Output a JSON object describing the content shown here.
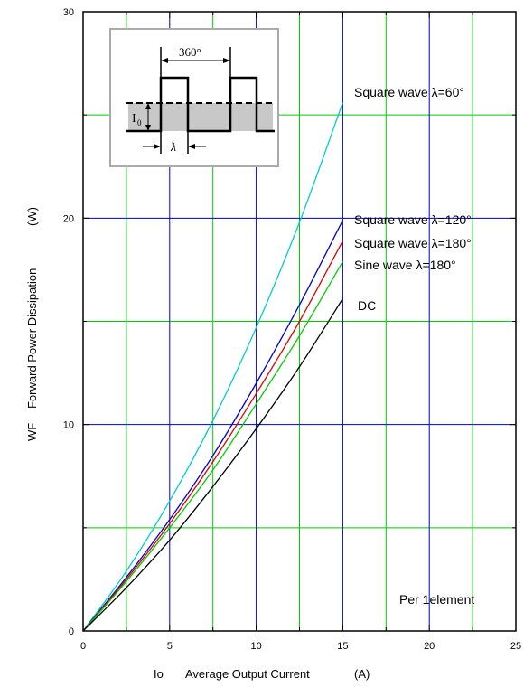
{
  "chart_data": {
    "type": "line",
    "x_axis": {
      "label_symbol": "Io",
      "label_text": "Average Output Current",
      "label_unit": "(A)",
      "range": [
        0,
        25
      ],
      "ticks": [
        0,
        5,
        10,
        15,
        20,
        25
      ],
      "minor_step": 2.5
    },
    "y_axis": {
      "label_symbol": "WF",
      "label_text": "Forward Power Dissipation",
      "label_unit": "(W)",
      "range": [
        0,
        30
      ],
      "ticks": [
        0,
        10,
        20,
        30
      ],
      "minor_step": 5
    },
    "grid": true,
    "grid_colors": {
      "major": "#0000cc",
      "minor": "#00cc00"
    },
    "series": [
      {
        "name": "Square wave λ=60°",
        "color": "#00cccc",
        "x": [
          0,
          2.5,
          5,
          7.5,
          10,
          12.5,
          15
        ],
        "y": [
          0,
          2.9,
          6.3,
          10.2,
          14.7,
          19.8,
          25.6
        ]
      },
      {
        "name": "Square wave λ=120°",
        "color": "#0000cc",
        "x": [
          0,
          2.5,
          5,
          7.5,
          10,
          12.5,
          15
        ],
        "y": [
          0,
          2.6,
          5.4,
          8.5,
          12.0,
          15.8,
          19.9
        ]
      },
      {
        "name": "Square wave λ=180°",
        "color": "#e00000",
        "x": [
          0,
          2.5,
          5,
          7.5,
          10,
          12.5,
          15
        ],
        "y": [
          0,
          2.5,
          5.2,
          8.2,
          11.5,
          15.0,
          18.9
        ]
      },
      {
        "name": "Sine wave λ=180°",
        "color": "#00cc00",
        "x": [
          0,
          2.5,
          5,
          7.5,
          10,
          12.5,
          15
        ],
        "y": [
          0,
          2.4,
          5.0,
          7.8,
          11.0,
          14.3,
          17.9
        ]
      },
      {
        "name": "DC",
        "color": "#000000",
        "x": [
          0,
          2.5,
          5,
          7.5,
          10,
          12.5,
          15
        ],
        "y": [
          0,
          2.1,
          4.4,
          7.0,
          9.8,
          12.8,
          16.1
        ]
      }
    ],
    "annotation": "Per 1element",
    "inset": {
      "period_label": "360°",
      "current_label": "I",
      "current_subscript": "0",
      "width_label": "λ"
    }
  }
}
